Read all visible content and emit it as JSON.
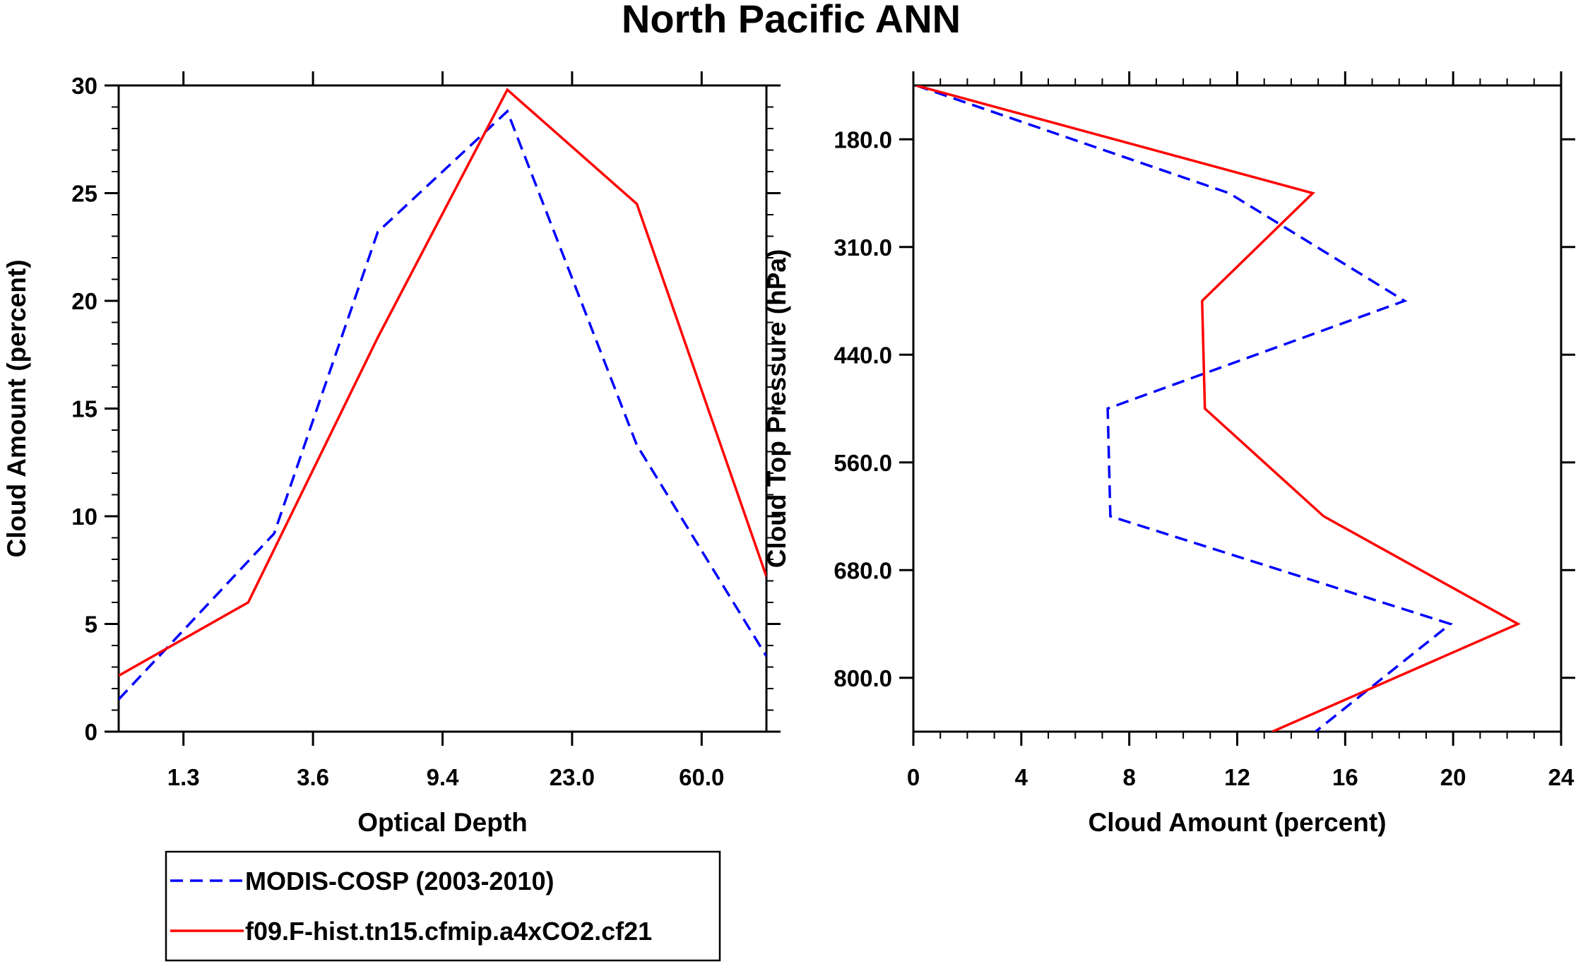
{
  "figure_title": "North Pacific ANN",
  "colors": {
    "modis": "#0000ff",
    "model": "#ff0000",
    "axis": "#000000"
  },
  "legend": [
    {
      "label": "MODIS-COSP (2003-2010)",
      "style": "dashed",
      "color": "#0000ff"
    },
    {
      "label": "f09.F-hist.tn15.cfmip.a4xCO2.cf21",
      "style": "solid",
      "color": "#ff0000"
    }
  ],
  "chart_data": [
    {
      "type": "line",
      "name": "optical-depth",
      "title": "",
      "xlabel": "Optical Depth",
      "ylabel": "Cloud Amount (percent)",
      "x_tick_labels": [
        "1.3",
        "3.6",
        "9.4",
        "23.0",
        "60.0"
      ],
      "x_bin_range": [
        0,
        5
      ],
      "y_ticks": [
        "0",
        "5",
        "10",
        "15",
        "20",
        "25",
        "30"
      ],
      "ylim": [
        0,
        30
      ],
      "series": [
        {
          "name": "MODIS-COSP (2003-2010)",
          "style": "dashed",
          "x": [
            0,
            1.2,
            2,
            3,
            4,
            5
          ],
          "values": [
            1.5,
            9.2,
            23.2,
            28.8,
            13.3,
            3.5
          ]
        },
        {
          "name": "f09.F-hist.tn15.cfmip.a4xCO2.cf21",
          "style": "solid",
          "x": [
            0,
            1,
            2,
            3,
            4,
            5
          ],
          "values": [
            2.6,
            6.0,
            18.3,
            29.8,
            24.5,
            7.2
          ]
        }
      ]
    },
    {
      "type": "line",
      "name": "cloud-top-pressure",
      "title": "",
      "xlabel": "Cloud Amount (percent)",
      "ylabel": "Cloud Top Pressure (hPa)",
      "x_ticks": [
        "0",
        "4",
        "8",
        "12",
        "16",
        "20",
        "24"
      ],
      "xlim": [
        0,
        24
      ],
      "y_tick_labels": [
        "180.0",
        "310.0",
        "440.0",
        "560.0",
        "680.0",
        "800.0"
      ],
      "y_level_range": [
        0,
        6
      ],
      "series": [
        {
          "name": "MODIS-COSP (2003-2010)",
          "style": "dashed",
          "x": [
            0.1,
            11.7,
            18.2,
            7.2,
            7.3,
            19.9,
            14.9
          ],
          "levels": [
            0,
            1,
            2,
            3,
            4,
            5,
            6
          ]
        },
        {
          "name": "f09.F-hist.tn15.cfmip.a4xCO2.cf21",
          "style": "solid",
          "x": [
            0.1,
            14.8,
            10.7,
            10.8,
            15.2,
            22.4,
            13.3
          ],
          "levels": [
            0,
            1,
            2,
            3,
            4,
            5,
            6
          ]
        }
      ]
    }
  ]
}
